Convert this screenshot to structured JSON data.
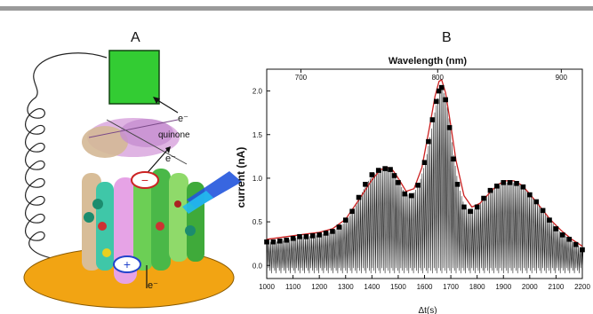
{
  "figure": {
    "panel_a_label": "A",
    "panel_b_label": "B",
    "top_rule_color": "#9a9a9a"
  },
  "panel_a": {
    "electrode_color": "#33cc33",
    "disk_color": "#f2a413",
    "labels": {
      "electron_top": "e⁻",
      "quinone": "quinone",
      "electron_mid": "e⁻",
      "electron_bottom": "e⁻",
      "minus": "−",
      "plus": "+"
    },
    "icons": [
      "electrode-block-icon",
      "coiled-wire-icon",
      "protein-complex-icon",
      "light-beam-icon",
      "gold-disk-icon"
    ]
  },
  "chart_data": {
    "type": "line",
    "xlabel": "Δt(s)",
    "ylabel": "current (nA)",
    "x2label": "Wavelength (nm)",
    "xlim": [
      1000,
      2200
    ],
    "ylim": [
      -0.15,
      2.25
    ],
    "x_ticks": [
      "1000",
      "1100",
      "1200",
      "1300",
      "1400",
      "1500",
      "1600",
      "1700",
      "1800",
      "1900",
      "2000",
      "2100",
      "2200"
    ],
    "y_ticks": [
      "0.0",
      "0.5",
      "1.0",
      "1.5",
      "2.0"
    ],
    "x2_ticks": [
      {
        "label": "700",
        "at": 1130
      },
      {
        "label": "800",
        "at": 1650
      },
      {
        "label": "900",
        "at": 2120
      }
    ],
    "series": [
      {
        "kind": "square-markers",
        "color": "#000000",
        "x": [
          1000,
          1025,
          1050,
          1075,
          1100,
          1125,
          1150,
          1175,
          1200,
          1225,
          1250,
          1275,
          1300,
          1325,
          1350,
          1375,
          1400,
          1425,
          1450,
          1470,
          1485,
          1500,
          1525,
          1550,
          1575,
          1600,
          1615,
          1630,
          1645,
          1655,
          1665,
          1680,
          1695,
          1710,
          1725,
          1750,
          1775,
          1800,
          1825,
          1850,
          1875,
          1900,
          1925,
          1950,
          1975,
          2000,
          2025,
          2050,
          2075,
          2100,
          2125,
          2150,
          2175,
          2200
        ],
        "y": [
          0.27,
          0.27,
          0.28,
          0.29,
          0.31,
          0.33,
          0.33,
          0.34,
          0.35,
          0.37,
          0.39,
          0.44,
          0.52,
          0.62,
          0.78,
          0.93,
          1.04,
          1.09,
          1.11,
          1.1,
          1.03,
          0.95,
          0.82,
          0.8,
          0.92,
          1.18,
          1.42,
          1.67,
          1.88,
          2.0,
          2.04,
          1.9,
          1.58,
          1.22,
          0.93,
          0.67,
          0.62,
          0.67,
          0.77,
          0.86,
          0.91,
          0.95,
          0.95,
          0.94,
          0.9,
          0.81,
          0.73,
          0.63,
          0.52,
          0.42,
          0.35,
          0.3,
          0.24,
          0.18
        ]
      },
      {
        "kind": "fit-line",
        "color": "#cc2222",
        "x": [
          1000,
          1050,
          1100,
          1150,
          1200,
          1250,
          1300,
          1350,
          1400,
          1430,
          1455,
          1480,
          1500,
          1530,
          1560,
          1590,
          1620,
          1640,
          1655,
          1665,
          1680,
          1700,
          1720,
          1750,
          1780,
          1810,
          1850,
          1880,
          1910,
          1940,
          1970,
          2000,
          2040,
          2080,
          2120,
          2160,
          2200
        ],
        "y": [
          0.3,
          0.32,
          0.34,
          0.36,
          0.38,
          0.42,
          0.53,
          0.75,
          0.98,
          1.09,
          1.13,
          1.09,
          1.0,
          0.85,
          0.88,
          1.12,
          1.6,
          1.94,
          2.11,
          2.13,
          1.98,
          1.6,
          1.2,
          0.8,
          0.67,
          0.71,
          0.84,
          0.93,
          0.97,
          0.97,
          0.92,
          0.82,
          0.67,
          0.52,
          0.4,
          0.3,
          0.22
        ]
      }
    ],
    "baseline": {
      "kind": "oscillating-trace",
      "color": "#000000",
      "lower_envelope": -0.03
    }
  }
}
